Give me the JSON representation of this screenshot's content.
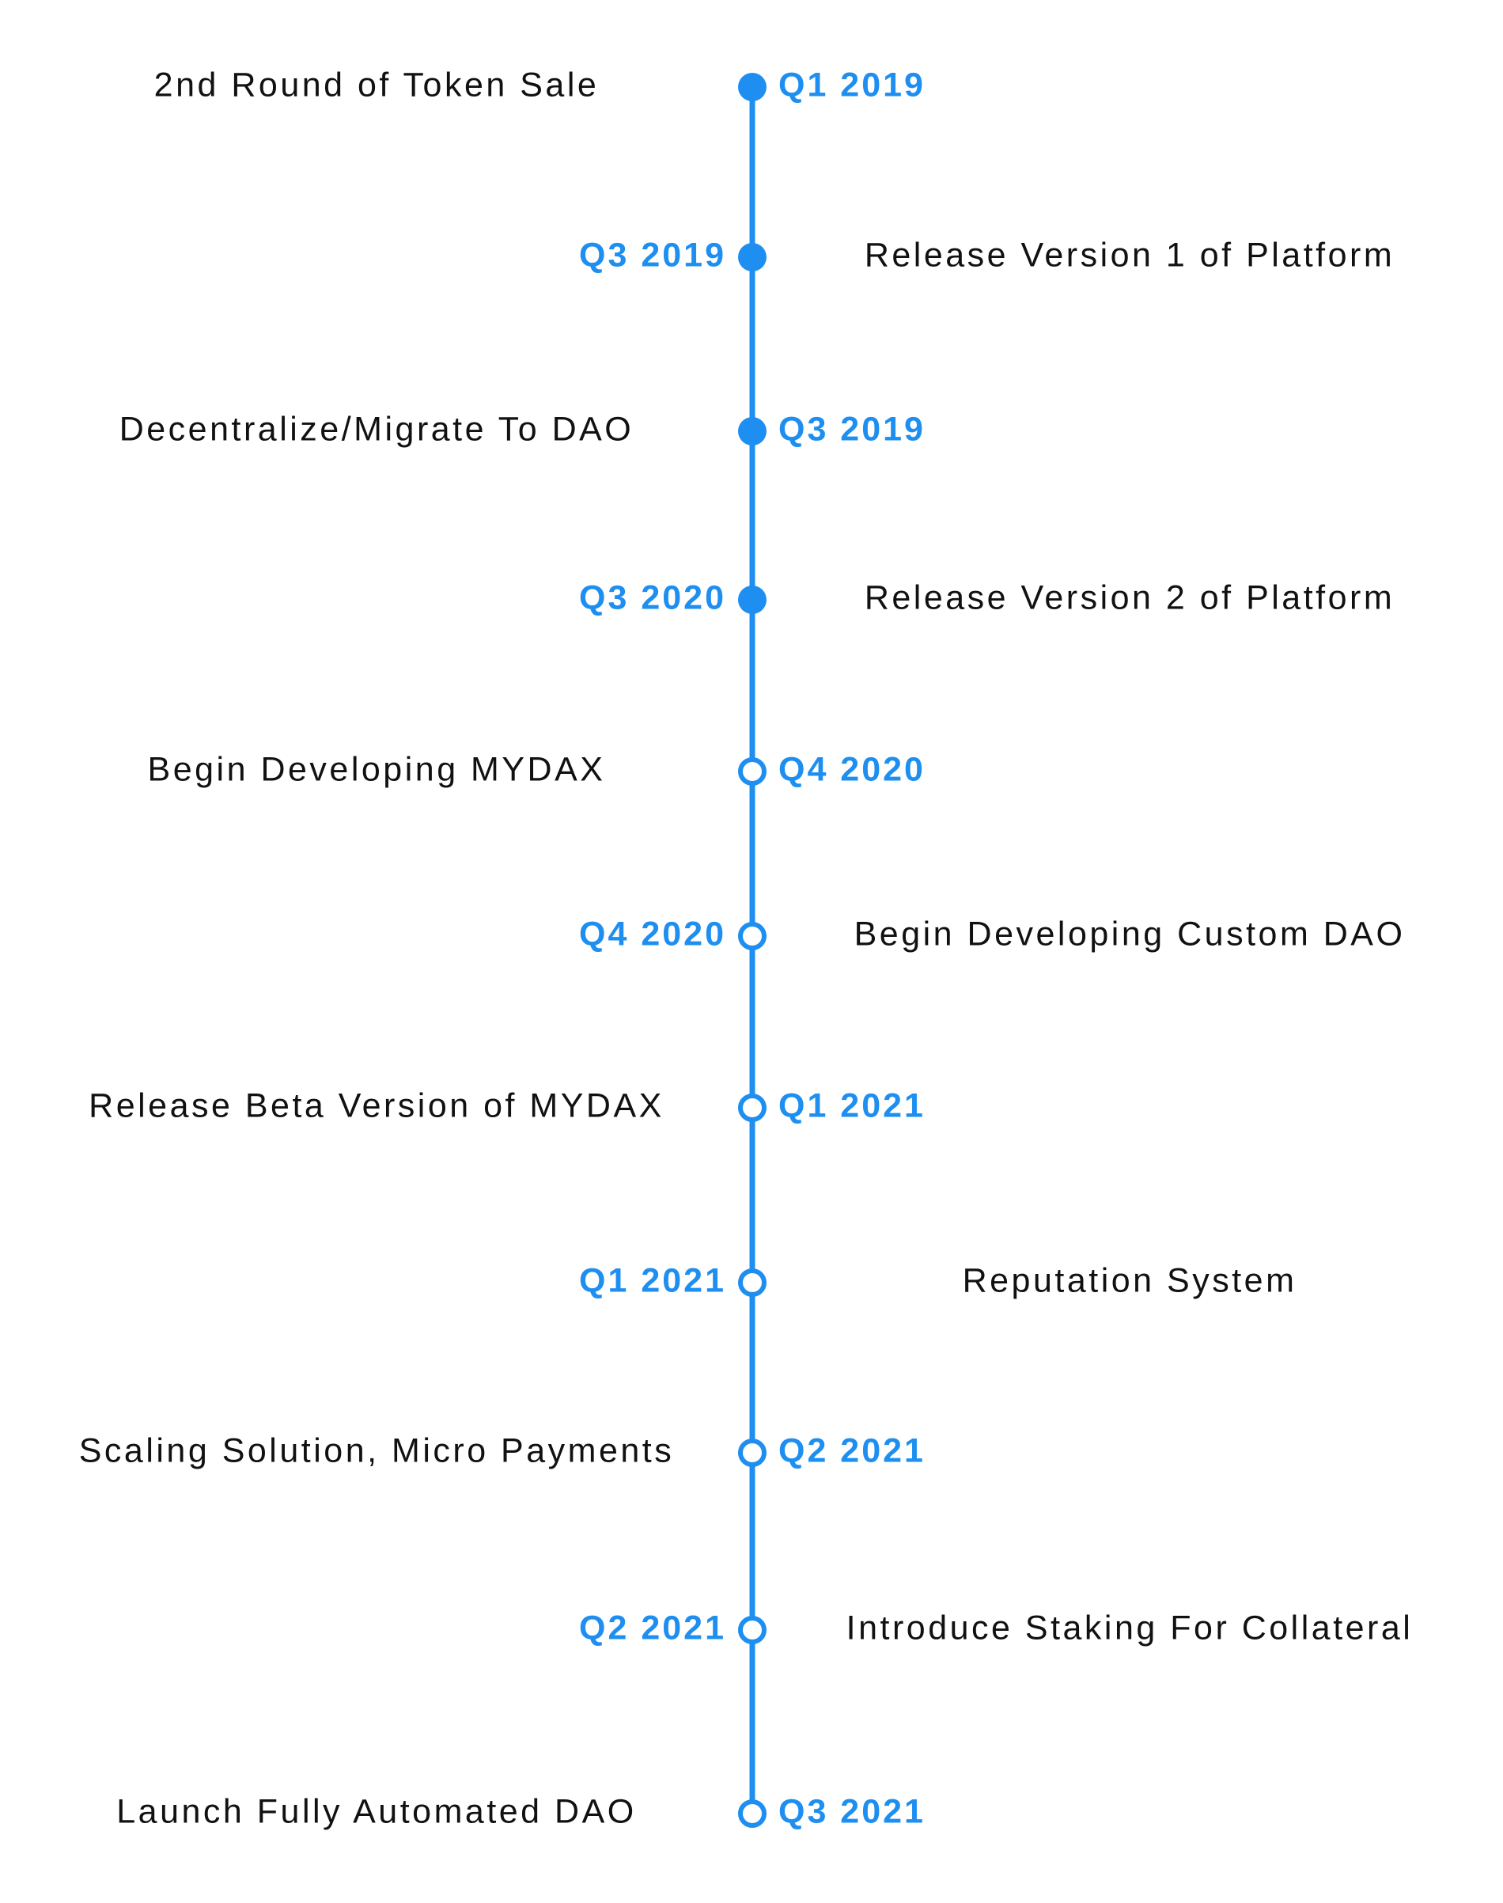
{
  "timeline": {
    "milestones": [
      {
        "date": "Q1 2019",
        "label": "2nd Round of Token Sale",
        "done": true
      },
      {
        "date": "Q3 2019",
        "label": "Release Version 1 of Platform",
        "done": true
      },
      {
        "date": "Q3 2019",
        "label": "Decentralize/Migrate To DAO",
        "done": true
      },
      {
        "date": "Q3 2020",
        "label": "Release Version 2 of Platform",
        "done": true
      },
      {
        "date": "Q4 2020",
        "label": "Begin Developing MYDAX",
        "done": false
      },
      {
        "date": "Q4 2020",
        "label": "Begin Developing Custom DAO",
        "done": false
      },
      {
        "date": "Q1 2021",
        "label": "Release Beta Version of MYDAX",
        "done": false
      },
      {
        "date": "Q1 2021",
        "label": "Reputation System",
        "done": false
      },
      {
        "date": "Q2 2021",
        "label": "Scaling Solution, Micro Payments",
        "done": false
      },
      {
        "date": "Q2 2021",
        "label": "Introduce Staking For Collateral",
        "done": false
      },
      {
        "date": "Q3 2021",
        "label": "Launch Fully Automated DAO",
        "done": false
      }
    ]
  }
}
